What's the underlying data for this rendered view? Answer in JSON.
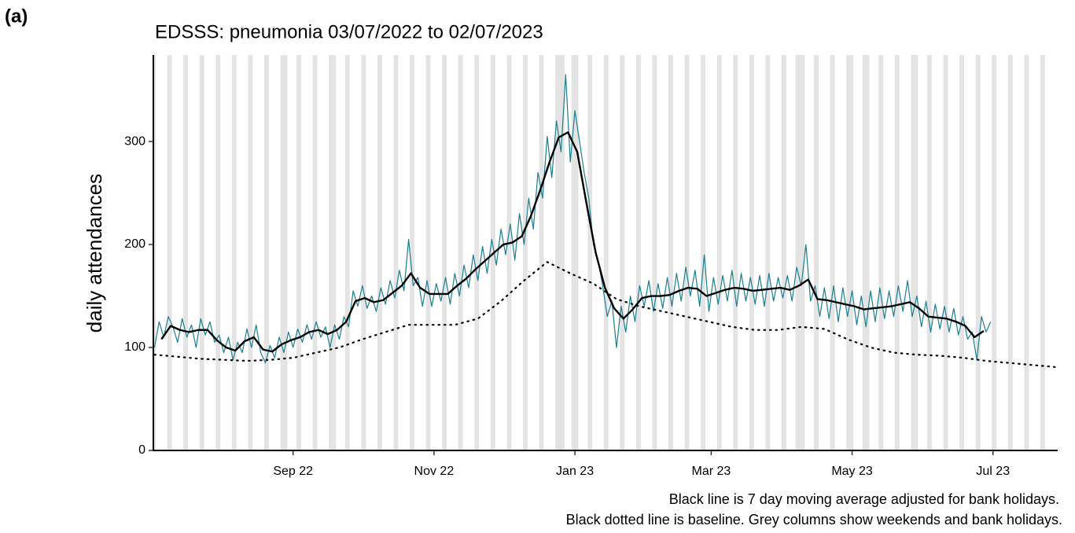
{
  "panel_label": "(a)",
  "chart_data": {
    "type": "line",
    "title": "EDSSS: pneumonia 03/07/2022 to 02/07/2023",
    "y_label": "daily attendances",
    "notes": [
      "Black line is 7 day moving average adjusted for bank holidays.",
      "Black dotted line is baseline. Grey columns show weekends and bank holidays."
    ],
    "xlim": [
      -0.5,
      391
    ],
    "ylim": [
      0,
      384
    ],
    "xticks": [
      {
        "value": 60,
        "label": "Sep 22"
      },
      {
        "value": 121,
        "label": "Nov 22"
      },
      {
        "value": 182,
        "label": "Jan 23"
      },
      {
        "value": 241,
        "label": "Mar 23"
      },
      {
        "value": 302,
        "label": "May 23"
      },
      {
        "value": 363,
        "label": "Jul 23"
      }
    ],
    "yticks": [
      0,
      100,
      200,
      300
    ],
    "grid": false,
    "shade_color": "#e3e3e3",
    "shaded_days": [
      0,
      6,
      7,
      13,
      14,
      20,
      21,
      27,
      28,
      34,
      35,
      41,
      42,
      48,
      49,
      55,
      56,
      57,
      62,
      63,
      69,
      70,
      76,
      77,
      78,
      83,
      84,
      90,
      91,
      97,
      98,
      104,
      105,
      111,
      112,
      118,
      119,
      125,
      126,
      132,
      133,
      139,
      140,
      146,
      147,
      153,
      154,
      160,
      161,
      167,
      168,
      174,
      175,
      176,
      177,
      181,
      182,
      183,
      188,
      189,
      195,
      196,
      202,
      203,
      209,
      210,
      216,
      217,
      223,
      224,
      230,
      231,
      237,
      238,
      244,
      245,
      251,
      252,
      258,
      259,
      265,
      266,
      272,
      273,
      278,
      279,
      280,
      281,
      286,
      287,
      293,
      294,
      300,
      301,
      302,
      307,
      308,
      309,
      314,
      315,
      321,
      322,
      328,
      329,
      330,
      335,
      336,
      342,
      343,
      349,
      350,
      356,
      357,
      363,
      364,
      370,
      371,
      377,
      378,
      384,
      385
    ],
    "series": [
      {
        "color": "#1b7f8f",
        "width": 1.2,
        "style": "solid",
        "x": [
          0,
          2,
          4,
          6,
          8,
          10,
          12,
          14,
          16,
          18,
          20,
          22,
          24,
          26,
          28,
          30,
          32,
          34,
          36,
          38,
          40,
          42,
          44,
          46,
          48,
          50,
          52,
          54,
          56,
          58,
          60,
          62,
          64,
          66,
          68,
          70,
          72,
          74,
          76,
          78,
          80,
          82,
          84,
          86,
          88,
          90,
          92,
          94,
          96,
          98,
          100,
          102,
          104,
          106,
          108,
          110,
          112,
          114,
          116,
          118,
          120,
          122,
          124,
          126,
          128,
          130,
          132,
          134,
          136,
          138,
          140,
          142,
          144,
          146,
          148,
          150,
          152,
          154,
          156,
          158,
          160,
          162,
          164,
          166,
          168,
          170,
          172,
          174,
          176,
          178,
          180,
          182,
          184,
          186,
          188,
          190,
          192,
          194,
          196,
          198,
          200,
          202,
          204,
          206,
          208,
          210,
          212,
          214,
          216,
          218,
          220,
          222,
          224,
          226,
          228,
          230,
          232,
          234,
          236,
          238,
          240,
          242,
          244,
          246,
          248,
          250,
          252,
          254,
          256,
          258,
          260,
          262,
          264,
          266,
          268,
          270,
          272,
          274,
          276,
          278,
          280,
          282,
          284,
          286,
          288,
          290,
          292,
          294,
          296,
          298,
          300,
          302,
          304,
          306,
          308,
          310,
          312,
          314,
          316,
          318,
          320,
          322,
          324,
          326,
          328,
          330,
          332,
          334,
          336,
          338,
          340,
          342,
          344,
          346,
          348,
          350,
          352,
          354,
          356,
          358,
          360,
          362
        ],
        "values": [
          100,
          125,
          110,
          130,
          120,
          105,
          128,
          110,
          122,
          100,
          128,
          112,
          125,
          105,
          112,
          95,
          110,
          88,
          105,
          95,
          118,
          100,
          122,
          95,
          85,
          102,
          90,
          110,
          95,
          115,
          100,
          118,
          105,
          122,
          108,
          125,
          110,
          120,
          100,
          122,
          108,
          130,
          120,
          155,
          140,
          160,
          138,
          150,
          135,
          158,
          142,
          165,
          148,
          175,
          155,
          205,
          160,
          168,
          140,
          165,
          140,
          162,
          145,
          168,
          142,
          172,
          150,
          180,
          158,
          190,
          165,
          198,
          172,
          205,
          180,
          215,
          190,
          220,
          185,
          230,
          200,
          245,
          215,
          270,
          245,
          305,
          265,
          320,
          290,
          365,
          280,
          330,
          300,
          270,
          245,
          200,
          185,
          160,
          130,
          145,
          100,
          140,
          115,
          150,
          125,
          160,
          140,
          165,
          135,
          162,
          138,
          168,
          140,
          172,
          145,
          178,
          150,
          175,
          140,
          190,
          135,
          168,
          142,
          170,
          145,
          175,
          140,
          172,
          145,
          168,
          142,
          170,
          140,
          172,
          145,
          168,
          148,
          170,
          145,
          178,
          160,
          200,
          145,
          160,
          130,
          158,
          128,
          160,
          125,
          158,
          130,
          155,
          122,
          150,
          120,
          155,
          125,
          158,
          128,
          155,
          130,
          160,
          135,
          165,
          130,
          150,
          120,
          145,
          115,
          142,
          118,
          140,
          115,
          138,
          112,
          130,
          108,
          115,
          88,
          130,
          115,
          125
        ]
      },
      {
        "color": "#000000",
        "width": 2.4,
        "style": "solid",
        "x": [
          3,
          7,
          11,
          15,
          19,
          23,
          27,
          31,
          35,
          39,
          43,
          47,
          51,
          55,
          59,
          63,
          67,
          71,
          75,
          79,
          83,
          87,
          91,
          95,
          99,
          103,
          107,
          111,
          115,
          119,
          123,
          127,
          131,
          135,
          139,
          143,
          147,
          151,
          155,
          159,
          163,
          167,
          171,
          175,
          179,
          183,
          187,
          191,
          195,
          199,
          203,
          207,
          211,
          215,
          219,
          223,
          227,
          231,
          235,
          239,
          243,
          247,
          251,
          255,
          259,
          263,
          267,
          271,
          275,
          279,
          283,
          287,
          291,
          295,
          299,
          303,
          307,
          311,
          315,
          319,
          323,
          327,
          331,
          335,
          339,
          343,
          347,
          351,
          355,
          359
        ],
        "values": [
          108,
          121,
          117,
          115,
          117,
          117,
          107,
          100,
          97,
          106,
          110,
          98,
          96,
          103,
          107,
          110,
          115,
          117,
          113,
          117,
          125,
          145,
          148,
          144,
          146,
          153,
          160,
          172,
          158,
          152,
          152,
          152,
          160,
          167,
          176,
          184,
          192,
          200,
          202,
          208,
          228,
          253,
          280,
          304,
          309,
          290,
          240,
          192,
          158,
          138,
          128,
          137,
          148,
          150,
          150,
          151,
          155,
          158,
          157,
          150,
          153,
          156,
          158,
          157,
          155,
          156,
          157,
          158,
          156,
          160,
          166,
          147,
          146,
          144,
          142,
          140,
          137,
          138,
          139,
          140,
          142,
          144,
          138,
          130,
          129,
          128,
          125,
          121,
          110,
          116
        ]
      },
      {
        "color": "#000000",
        "width": 2.2,
        "style": "dotted",
        "x": [
          0,
          10,
          20,
          30,
          40,
          50,
          60,
          70,
          80,
          90,
          100,
          110,
          120,
          130,
          140,
          150,
          160,
          170,
          180,
          190,
          200,
          210,
          220,
          230,
          240,
          250,
          260,
          270,
          280,
          290,
          300,
          310,
          320,
          330,
          340,
          350,
          360,
          370,
          380,
          390
        ],
        "values": [
          93,
          91,
          89,
          88,
          87,
          88,
          90,
          95,
          100,
          108,
          115,
          122,
          122,
          122,
          128,
          145,
          165,
          183,
          172,
          162,
          147,
          140,
          135,
          130,
          125,
          120,
          117,
          117,
          120,
          118,
          108,
          100,
          95,
          93,
          92,
          90,
          87,
          85,
          83,
          81
        ]
      }
    ]
  }
}
